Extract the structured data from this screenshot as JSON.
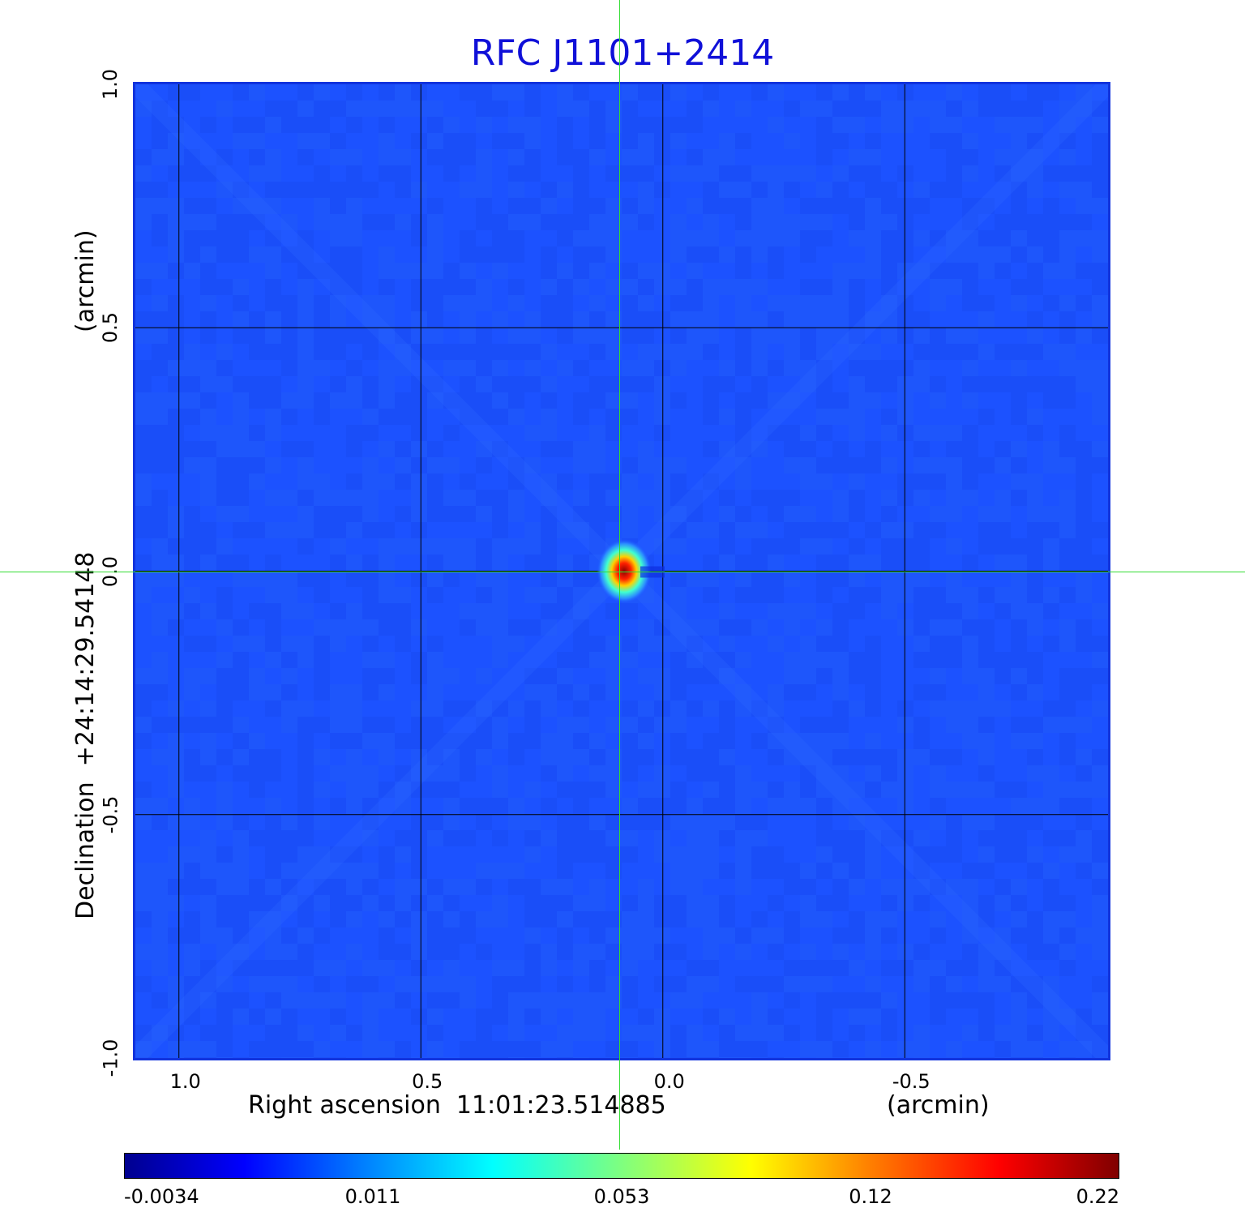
{
  "chart_data": {
    "type": "heatmap",
    "title": "RFC J1101+2414",
    "xlabel": "Right ascension  11:01:23.514885",
    "x_unit": "(arcmin)",
    "ylabel": "Declination  +24:14:29.54148",
    "y_unit": "(arcmin)",
    "x_ticks": [
      "1.0",
      "0.5",
      "0.0",
      "-0.5"
    ],
    "y_ticks": [
      "1.0",
      "0.5",
      "0.0",
      "-0.5",
      "-1.0"
    ],
    "xlim": [
      1.09,
      -0.92
    ],
    "ylim": [
      -1.0,
      1.0
    ],
    "grid": true,
    "colorbar": {
      "ticks": [
        "-0.0034",
        "0.011",
        "0.053",
        "0.12",
        "0.22"
      ],
      "range": [
        -0.0034,
        0.22
      ],
      "colormap": "jet"
    },
    "peak": {
      "x": 0.09,
      "y": 0.0,
      "value": 0.22
    },
    "crosshair": {
      "x": 0.09,
      "y": 0.0
    },
    "colors": {
      "background": "#1a4fff",
      "title": "#1010d8",
      "crosshair": "#33dd33",
      "grid": "#000000"
    }
  }
}
